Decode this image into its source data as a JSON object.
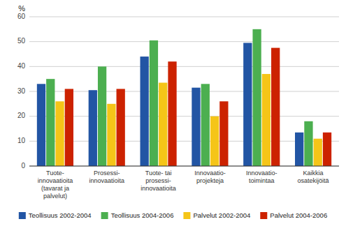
{
  "chart_data": {
    "type": "bar",
    "ylabel": "%",
    "categories": [
      "Tuote-\ninnovaatioita\n(tavarat ja\npalvelut)",
      "Prosessi-\ninnovaatioita",
      "Tuote- tai\nprosessi-\ninnovaatioita",
      "Innovaatio-\nprojekteja",
      "Innovaatio-\ntoimintaa",
      "Kaikkia\nosatekijöitä"
    ],
    "series": [
      {
        "name": "Teollisuus 2002-2004",
        "color": "#2255a4",
        "values": [
          33,
          30.5,
          44,
          31.5,
          49.5,
          13.5
        ]
      },
      {
        "name": "Teollisuus 2004-2006",
        "color": "#4caf50",
        "values": [
          35,
          40,
          50.5,
          33,
          55,
          18
        ]
      },
      {
        "name": "Palvelut 2002-2004",
        "color": "#f5c518",
        "values": [
          26,
          25,
          33.5,
          20,
          37,
          11
        ]
      },
      {
        "name": "Palvelut 2004-2006",
        "color": "#cc2200",
        "values": [
          31,
          31,
          42,
          26,
          47.5,
          13.5
        ]
      }
    ],
    "ylim": [
      0,
      60
    ],
    "yticks": [
      0,
      10,
      20,
      30,
      40,
      50,
      60
    ],
    "grid": true,
    "legend": "bottom"
  }
}
